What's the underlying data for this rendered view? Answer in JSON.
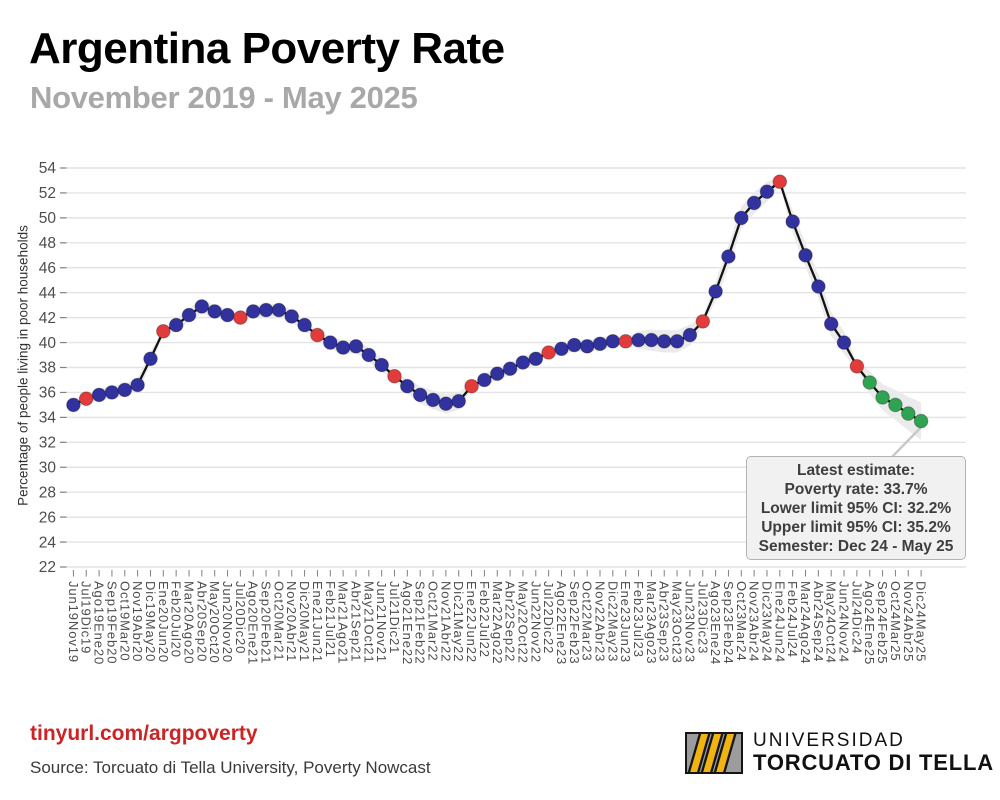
{
  "header": {
    "title": "Argentina Poverty Rate",
    "subtitle": "November 2019 - May 2025"
  },
  "annotation": {
    "lines": [
      "Latest estimate:",
      "Poverty rate: 33.7%",
      "Lower limit 95% CI: 32.2%",
      "Upper limit 95% CI: 35.2%",
      "Semester: Dec 24 - May 25"
    ]
  },
  "footer": {
    "link": "tinyurl.com/argpoverty",
    "source": "Source: Torcuato di Tella University, Poverty Nowcast",
    "logo": {
      "line1": "UNIVERSIDAD",
      "line2": "TORCUATO DI TELLA"
    }
  },
  "chart_data": {
    "type": "line",
    "title": "Argentina Poverty Rate",
    "xlabel": "",
    "ylabel": "Percentage of people living in poor households",
    "ylim": [
      22,
      54
    ],
    "ytick_step": 2,
    "grid": "horizontal",
    "legend": "none",
    "categories": [
      "Jun19Nov19",
      "Jul19Dic19",
      "Ago19Ene20",
      "Sep19Feb20",
      "Oct19Mar20",
      "Nov19Abr20",
      "Dic19May20",
      "Ene20Jun20",
      "Feb20Jul20",
      "Mar20Ago20",
      "Abr20Sep20",
      "May20Oct20",
      "Jun20Nov20",
      "Jul20Dic20",
      "Ago20Ene21",
      "Sep20Feb21",
      "Oct20Mar21",
      "Nov20Abr21",
      "Dic20May21",
      "Ene21Jun21",
      "Feb21Jul21",
      "Mar21Ago21",
      "Abr21Sep21",
      "May21Oct21",
      "Jun21Nov21",
      "Jul21Dic21",
      "Ago21Ene22",
      "Sep21Feb22",
      "Oct21Mar22",
      "Nov21Abr22",
      "Dic21May22",
      "Ene22Jun22",
      "Feb22Jul22",
      "Mar22Ago22",
      "Abr22Sep22",
      "May22Oct22",
      "Jun22Nov22",
      "Jul22Dic22",
      "Ago22Ene23",
      "Sep22Feb23",
      "Oct22Mar23",
      "Nov22Abr23",
      "Dic22May23",
      "Ene23Jun23",
      "Feb23Jul23",
      "Mar23Ago23",
      "Abr23Sep23",
      "May23Oct23",
      "Jun23Nov23",
      "Jul23Dic23",
      "Ago23Ene24",
      "Sep23Feb24",
      "Oct23Mar24",
      "Nov23Abr24",
      "Dic23May24",
      "Ene24Jun24",
      "Feb24Jul24",
      "Mar24Ago24",
      "Abr24Sep24",
      "May24Oct24",
      "Jun24Nov24",
      "Jul24Dic24",
      "Ago24Ene25",
      "Sep24Feb25",
      "Oct24Mar25",
      "Nov24Abr25",
      "Dic24May25"
    ],
    "values": [
      35.0,
      35.5,
      35.8,
      36.0,
      36.2,
      36.6,
      38.7,
      40.9,
      41.4,
      42.2,
      42.9,
      42.5,
      42.2,
      42.0,
      42.5,
      42.6,
      42.6,
      42.1,
      41.4,
      40.6,
      40.0,
      39.6,
      39.7,
      39.0,
      38.2,
      37.3,
      36.5,
      35.8,
      35.4,
      35.1,
      35.3,
      36.5,
      37.0,
      37.5,
      37.9,
      38.4,
      38.7,
      39.2,
      39.5,
      39.8,
      39.7,
      39.9,
      40.1,
      40.1,
      40.2,
      40.2,
      40.1,
      40.1,
      40.6,
      41.7,
      44.1,
      46.9,
      50.0,
      51.2,
      52.1,
      52.9,
      49.7,
      47.0,
      44.5,
      41.5,
      40.0,
      38.1,
      36.8,
      35.6,
      35.0,
      34.3,
      33.7
    ],
    "point_types": [
      "nowcast",
      "observed",
      "nowcast",
      "nowcast",
      "nowcast",
      "nowcast",
      "nowcast",
      "observed",
      "nowcast",
      "nowcast",
      "nowcast",
      "nowcast",
      "nowcast",
      "observed",
      "nowcast",
      "nowcast",
      "nowcast",
      "nowcast",
      "nowcast",
      "observed",
      "nowcast",
      "nowcast",
      "nowcast",
      "nowcast",
      "nowcast",
      "observed",
      "nowcast",
      "nowcast",
      "nowcast",
      "nowcast",
      "nowcast",
      "observed",
      "nowcast",
      "nowcast",
      "nowcast",
      "nowcast",
      "nowcast",
      "observed",
      "nowcast",
      "nowcast",
      "nowcast",
      "nowcast",
      "nowcast",
      "observed",
      "nowcast",
      "nowcast",
      "nowcast",
      "nowcast",
      "nowcast",
      "observed",
      "nowcast",
      "nowcast",
      "nowcast",
      "nowcast",
      "nowcast",
      "observed",
      "nowcast",
      "nowcast",
      "nowcast",
      "nowcast",
      "nowcast",
      "observed",
      "latest",
      "latest",
      "latest",
      "latest",
      "latest"
    ],
    "band_halfwidth": [
      0.55,
      0.25,
      0.5,
      0.5,
      0.5,
      0.55,
      0.55,
      0.25,
      0.5,
      0.5,
      0.55,
      0.5,
      0.45,
      0.25,
      0.5,
      0.5,
      0.5,
      0.5,
      0.5,
      0.25,
      0.5,
      0.55,
      0.55,
      0.55,
      0.55,
      0.25,
      0.6,
      0.7,
      0.75,
      0.8,
      0.7,
      0.25,
      0.5,
      0.5,
      0.5,
      0.5,
      0.5,
      0.25,
      0.5,
      0.5,
      0.5,
      0.5,
      0.5,
      0.25,
      0.7,
      0.85,
      0.9,
      0.9,
      0.85,
      0.3,
      0.8,
      0.9,
      0.9,
      0.85,
      0.8,
      0.3,
      0.9,
      0.95,
      0.95,
      0.95,
      0.9,
      0.3,
      0.9,
      1.05,
      1.2,
      1.35,
      1.5
    ],
    "latest_estimate": {
      "poverty_rate": 33.7,
      "ci_lower": 32.2,
      "ci_upper": 35.2,
      "semester": "Dec 24 - May 25"
    },
    "colors": {
      "nowcast": "#32329e",
      "observed": "#e23b3b",
      "latest": "#2fa351",
      "line": "#121212",
      "band": "#ebebeb",
      "grid": "#e4e4e4",
      "tick": "#808080",
      "tick_label": "#4d4d4d"
    }
  }
}
